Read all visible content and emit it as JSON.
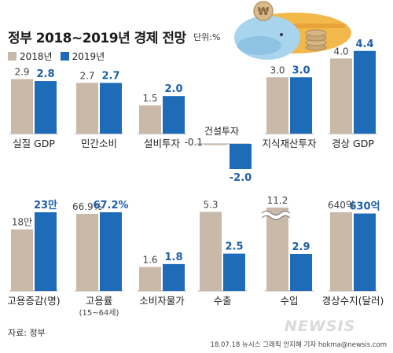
{
  "header": {
    "title": "정부 2018~2019년 경제 전망",
    "unit": "단위:%"
  },
  "legend": [
    {
      "label": "2018년",
      "color": "#c9b9a9"
    },
    {
      "label": "2019년",
      "color": "#1e6bb8"
    }
  ],
  "colors": {
    "y2018": "#c9b9a9",
    "y2019": "#1e6bb8",
    "label2019": "#1e5fa8",
    "negText": "#1e5fa8"
  },
  "chart_data": {
    "type": "bar",
    "series_names": [
      "2018년",
      "2019년"
    ],
    "panels": [
      {
        "category": "실질 GDP",
        "values": [
          2.9,
          2.8
        ],
        "labels": [
          "2.9",
          "2.8"
        ]
      },
      {
        "category": "민간소비",
        "values": [
          2.7,
          2.7
        ],
        "labels": [
          "2.7",
          "2.7"
        ]
      },
      {
        "category": "설비투자",
        "values": [
          1.5,
          2.0
        ],
        "labels": [
          "1.5",
          "2.0"
        ]
      },
      {
        "category": "건설투자",
        "values": [
          -0.1,
          -2.0
        ],
        "labels": [
          "-0.1",
          "-2.0"
        ]
      },
      {
        "category": "지식재산투자",
        "values": [
          3.0,
          3.0
        ],
        "labels": [
          "3.0",
          "3.0"
        ]
      },
      {
        "category": "경상 GDP",
        "values": [
          4.0,
          4.4
        ],
        "labels": [
          "4.0",
          "4.4"
        ]
      },
      {
        "category": "고용증감(명)",
        "values": [
          180000,
          230000
        ],
        "labels": [
          "18만",
          "23만"
        ]
      },
      {
        "category": "고용률",
        "sublabel": "(15~64세)",
        "values": [
          66.9,
          67.2
        ],
        "labels": [
          "66.9%",
          "67.2%"
        ]
      },
      {
        "category": "소비자물가",
        "values": [
          1.6,
          1.8
        ],
        "labels": [
          "1.6",
          "1.8"
        ]
      },
      {
        "category": "수출",
        "values": [
          5.3,
          2.5
        ],
        "labels": [
          "5.3",
          "2.5"
        ]
      },
      {
        "category": "수입",
        "values": [
          11.2,
          2.9
        ],
        "labels": [
          "11.2",
          "2.9"
        ],
        "axis_break": true
      },
      {
        "category": "경상수지(달러)",
        "values": [
          640,
          630
        ],
        "labels": [
          "640억",
          "630억"
        ]
      }
    ]
  },
  "footer": {
    "source": "자료: 정부",
    "credit": "18.07.18 뉴시스 그래픽 안지혜 기자 hokma@newsis.com",
    "watermark": "NEWSIS"
  }
}
